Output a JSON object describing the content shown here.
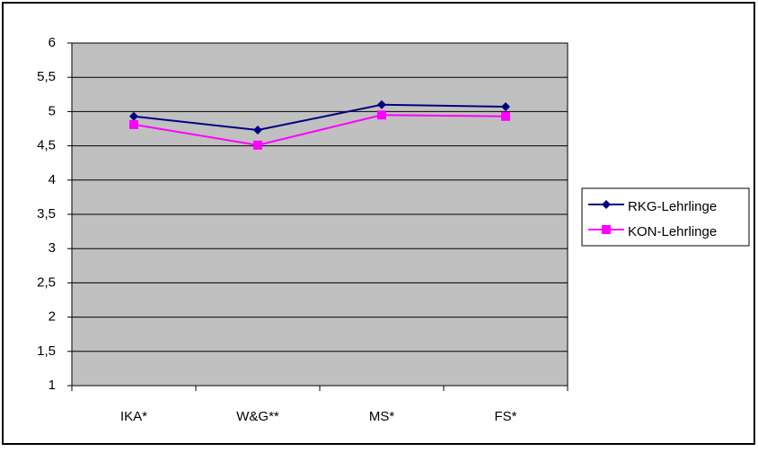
{
  "chart_data": {
    "type": "line",
    "categories": [
      "IKA*",
      "W&G**",
      "MS*",
      "FS*"
    ],
    "series": [
      {
        "name": "RKG-Lehrlinge",
        "color": "#000080",
        "marker": "diamond",
        "values": [
          4.93,
          4.73,
          5.1,
          5.07
        ]
      },
      {
        "name": "KON-Lehrlinge",
        "color": "#ff00ff",
        "marker": "square",
        "values": [
          4.81,
          4.51,
          4.95,
          4.93
        ]
      }
    ],
    "ylim": [
      1,
      6
    ],
    "yticks": [
      1,
      {
        "value": 1.5,
        "label": "1,5"
      },
      2,
      {
        "value": 2.5,
        "label": "2,5"
      },
      3,
      {
        "value": 3.5,
        "label": "3,5"
      },
      4,
      {
        "value": 4.5,
        "label": "4,5"
      },
      5,
      {
        "value": 5.5,
        "label": "5,5"
      },
      6
    ],
    "grid": true,
    "legend": "right"
  }
}
